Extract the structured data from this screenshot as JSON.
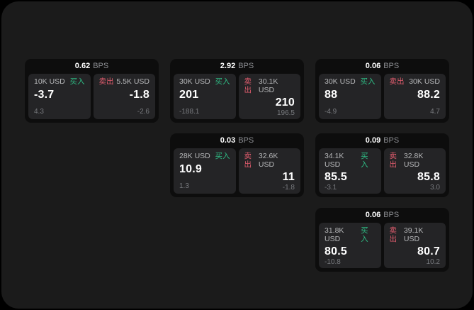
{
  "labels": {
    "bps": "BPS",
    "buy": "买入",
    "sell": "卖出"
  },
  "colors": {
    "buy_green": "#2ebd85",
    "sell_red": "#e05c6d",
    "window_background": "#1b1b1b",
    "card_background": "#0d0d0d",
    "panel_background": "#242426"
  },
  "cards": [
    {
      "bps": "0.62",
      "buy": {
        "amount": "10K USD",
        "value": "-3.7",
        "sub": "4.3"
      },
      "sell": {
        "amount": "5.5K USD",
        "value": "-1.8",
        "sub": "-2.6"
      }
    },
    {
      "bps": "2.92",
      "buy": {
        "amount": "30K USD",
        "value": "201",
        "sub": "-188.1"
      },
      "sell": {
        "amount": "30.1K USD",
        "value": "210",
        "sub": "196.5"
      }
    },
    {
      "bps": "0.06",
      "buy": {
        "amount": "30K USD",
        "value": "88",
        "sub": "-4.9"
      },
      "sell": {
        "amount": "30K USD",
        "value": "88.2",
        "sub": "4.7"
      }
    },
    {
      "bps": "0.03",
      "buy": {
        "amount": "28K USD",
        "value": "10.9",
        "sub": "1.3"
      },
      "sell": {
        "amount": "32.6K USD",
        "value": "11",
        "sub": "-1.8"
      }
    },
    {
      "bps": "0.09",
      "buy": {
        "amount": "34.1K USD",
        "value": "85.5",
        "sub": "-3.1"
      },
      "sell": {
        "amount": "32.8K USD",
        "value": "85.8",
        "sub": "3.0"
      }
    },
    {
      "bps": "0.06",
      "buy": {
        "amount": "31.8K USD",
        "value": "80.5",
        "sub": "-10.8"
      },
      "sell": {
        "amount": "39.1K USD",
        "value": "80.7",
        "sub": "10.2"
      }
    }
  ]
}
